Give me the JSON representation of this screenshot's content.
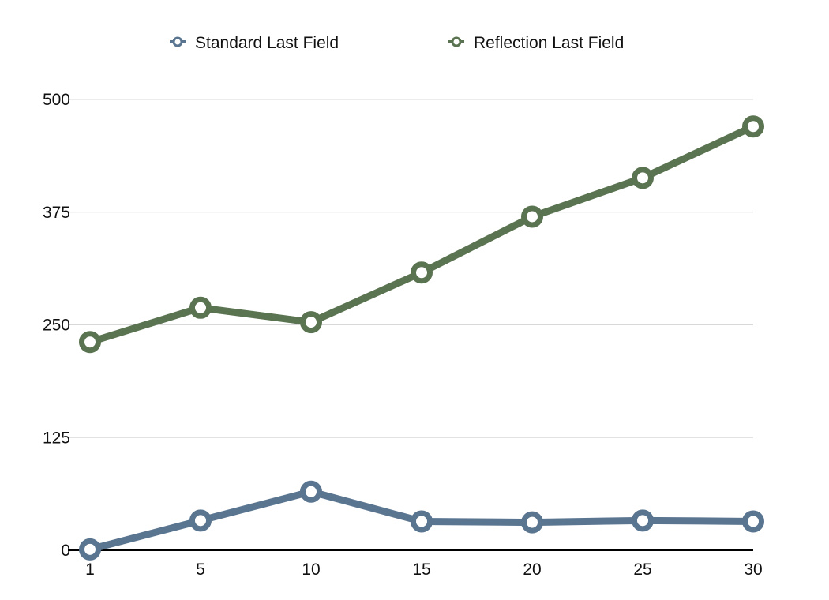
{
  "chart_data": {
    "type": "line",
    "title": "",
    "xlabel": "",
    "ylabel": "",
    "categories": [
      "1",
      "5",
      "10",
      "15",
      "20",
      "25",
      "30"
    ],
    "ylim": [
      0,
      500
    ],
    "yticks": [
      "0",
      "125",
      "250",
      "375",
      "500"
    ],
    "grid": true,
    "legend_position": "top-center",
    "series": [
      {
        "name": "Standard Last Field",
        "color": "#5a7590",
        "values": [
          1,
          33,
          65,
          32,
          31,
          33,
          32
        ]
      },
      {
        "name": "Reflection Last Field",
        "color": "#5a7350",
        "values": [
          231,
          269,
          253,
          308,
          370,
          413,
          470
        ]
      }
    ]
  }
}
